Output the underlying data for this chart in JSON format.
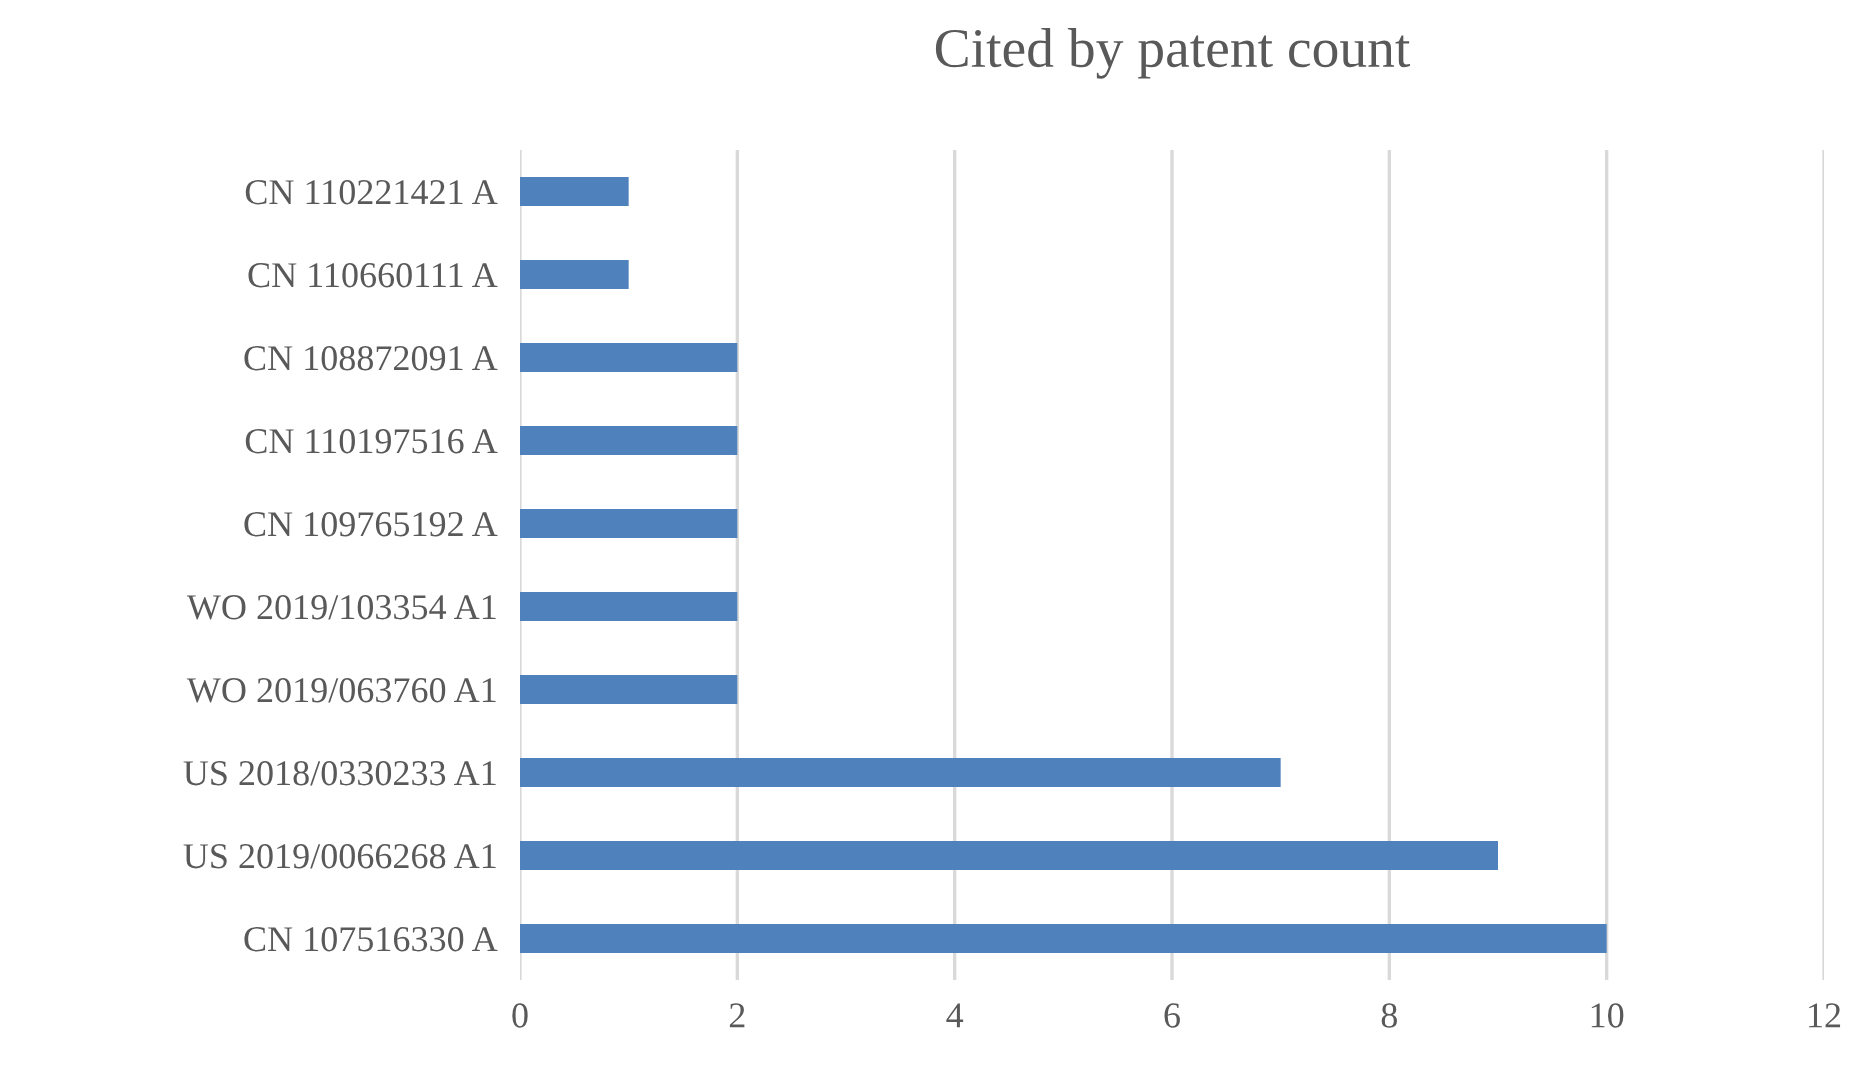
{
  "chart_data": {
    "type": "bar",
    "orientation": "horizontal",
    "title": "Cited by patent count",
    "categories": [
      "CN 110221421 A",
      "CN 110660111 A",
      "CN 108872091 A",
      "CN 110197516 A",
      "CN 109765192 A",
      "WO 2019/103354 A1",
      "WO 2019/063760 A1",
      "US 2018/0330233 A1",
      "US 2019/0066268 A1",
      "CN 107516330 A"
    ],
    "values": [
      1,
      1,
      2,
      2,
      2,
      2,
      2,
      7,
      9,
      10
    ],
    "color": "#4f81bd",
    "xlim": [
      0,
      12
    ],
    "xticks": [
      0,
      2,
      4,
      6,
      8,
      10,
      12
    ],
    "grid": "x"
  }
}
